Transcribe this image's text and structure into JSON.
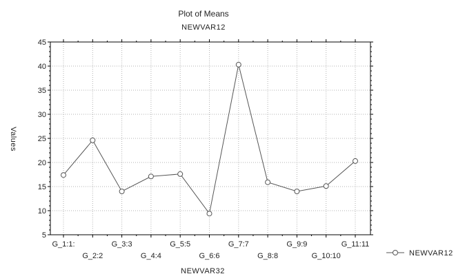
{
  "chart_data": {
    "type": "line",
    "title": "Plot of Means",
    "subtitle": "NEWVAR12",
    "xlabel": "NEWVAR32",
    "ylabel": "Values",
    "categories": [
      "G_1:1:",
      "G_2:2",
      "G_3:3",
      "G_4:4",
      "G_5:5",
      "G_6:6",
      "G_7:7",
      "G_8:8",
      "G_9:9",
      "G_10:10",
      "G_11:11"
    ],
    "series": [
      {
        "name": "NEWVAR12",
        "values": [
          17.4,
          24.6,
          14.0,
          17.1,
          17.6,
          9.4,
          40.3,
          15.9,
          14.0,
          15.1,
          20.3
        ]
      }
    ],
    "ylim": [
      5,
      45
    ],
    "yticks": [
      5,
      10,
      15,
      20,
      25,
      30,
      35,
      40,
      45
    ],
    "grid": true,
    "legend_position": "right",
    "colors": {
      "line": "#555555",
      "marker_fill": "#ffffff",
      "grid": "#b0b0b0",
      "axis": "#000000"
    }
  }
}
